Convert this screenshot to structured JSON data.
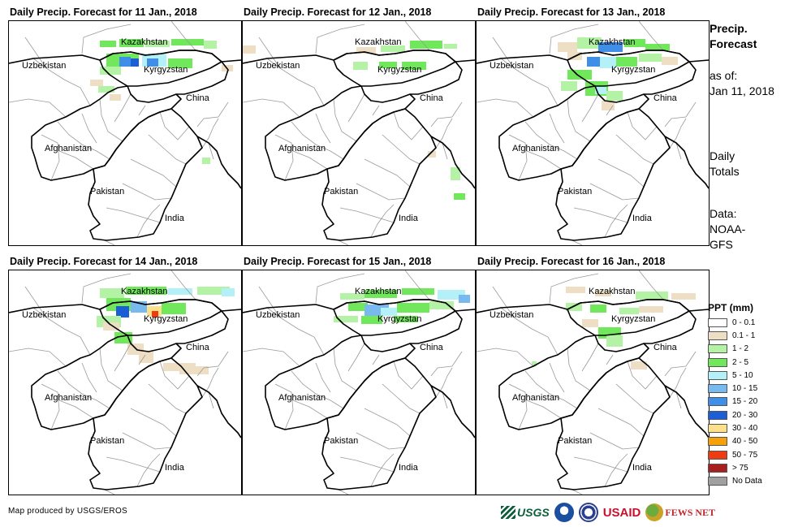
{
  "panels": [
    {
      "title": "Daily Precip. Forecast for 11 Jan., 2018"
    },
    {
      "title": "Daily Precip. Forecast for 12 Jan., 2018"
    },
    {
      "title": "Daily Precip. Forecast for 13 Jan., 2018"
    },
    {
      "title": "Daily Precip. Forecast for 14 Jan., 2018"
    },
    {
      "title": "Daily Precip. Forecast for 15 Jan., 2018"
    },
    {
      "title": "Daily Precip. Forecast for 16 Jan., 2018"
    }
  ],
  "map_labels": {
    "kazakhstan": "Kazakhstan",
    "uzbekistan": "Uzbekistan",
    "kyrgyzstan": "Kyrgyzstan",
    "china": "China",
    "afghanistan": "Afghanistan",
    "pakistan": "Pakistan",
    "india": "India"
  },
  "sidebar": {
    "heading_line1": "Precip.",
    "heading_line2": "Forecast",
    "asof_line1": "as of:",
    "asof_line2": "Jan 11, 2018",
    "totals_line1": "Daily",
    "totals_line2": "Totals",
    "data_line1": "Data:",
    "data_line2": "NOAA-",
    "data_line3": "GFS"
  },
  "legend": {
    "title": "PPT (mm)",
    "items": [
      {
        "label": "0 - 0.1",
        "color": "#ffffff"
      },
      {
        "label": "0.1 - 1",
        "color": "#eedfc4"
      },
      {
        "label": "1 - 2",
        "color": "#b4f2a5"
      },
      {
        "label": "2 - 5",
        "color": "#71e85c"
      },
      {
        "label": "5 - 10",
        "color": "#b4f0f7"
      },
      {
        "label": "10 - 15",
        "color": "#78b9f0"
      },
      {
        "label": "15 - 20",
        "color": "#3f8fe8"
      },
      {
        "label": "20 - 30",
        "color": "#1c5ed6"
      },
      {
        "label": "30 - 40",
        "color": "#fde08a"
      },
      {
        "label": "40 - 50",
        "color": "#f5a20a"
      },
      {
        "label": "50 - 75",
        "color": "#ee3b12"
      },
      {
        "label": "> 75",
        "color": "#a81f1f"
      },
      {
        "label": "No Data",
        "color": "#a0a0a0"
      }
    ]
  },
  "footer": {
    "credit": "Map produced by USGS/EROS"
  },
  "logos": {
    "usgs": "USGS",
    "usaid_us": "US",
    "usaid_aid": "AID",
    "fews": "FEWS NET"
  }
}
